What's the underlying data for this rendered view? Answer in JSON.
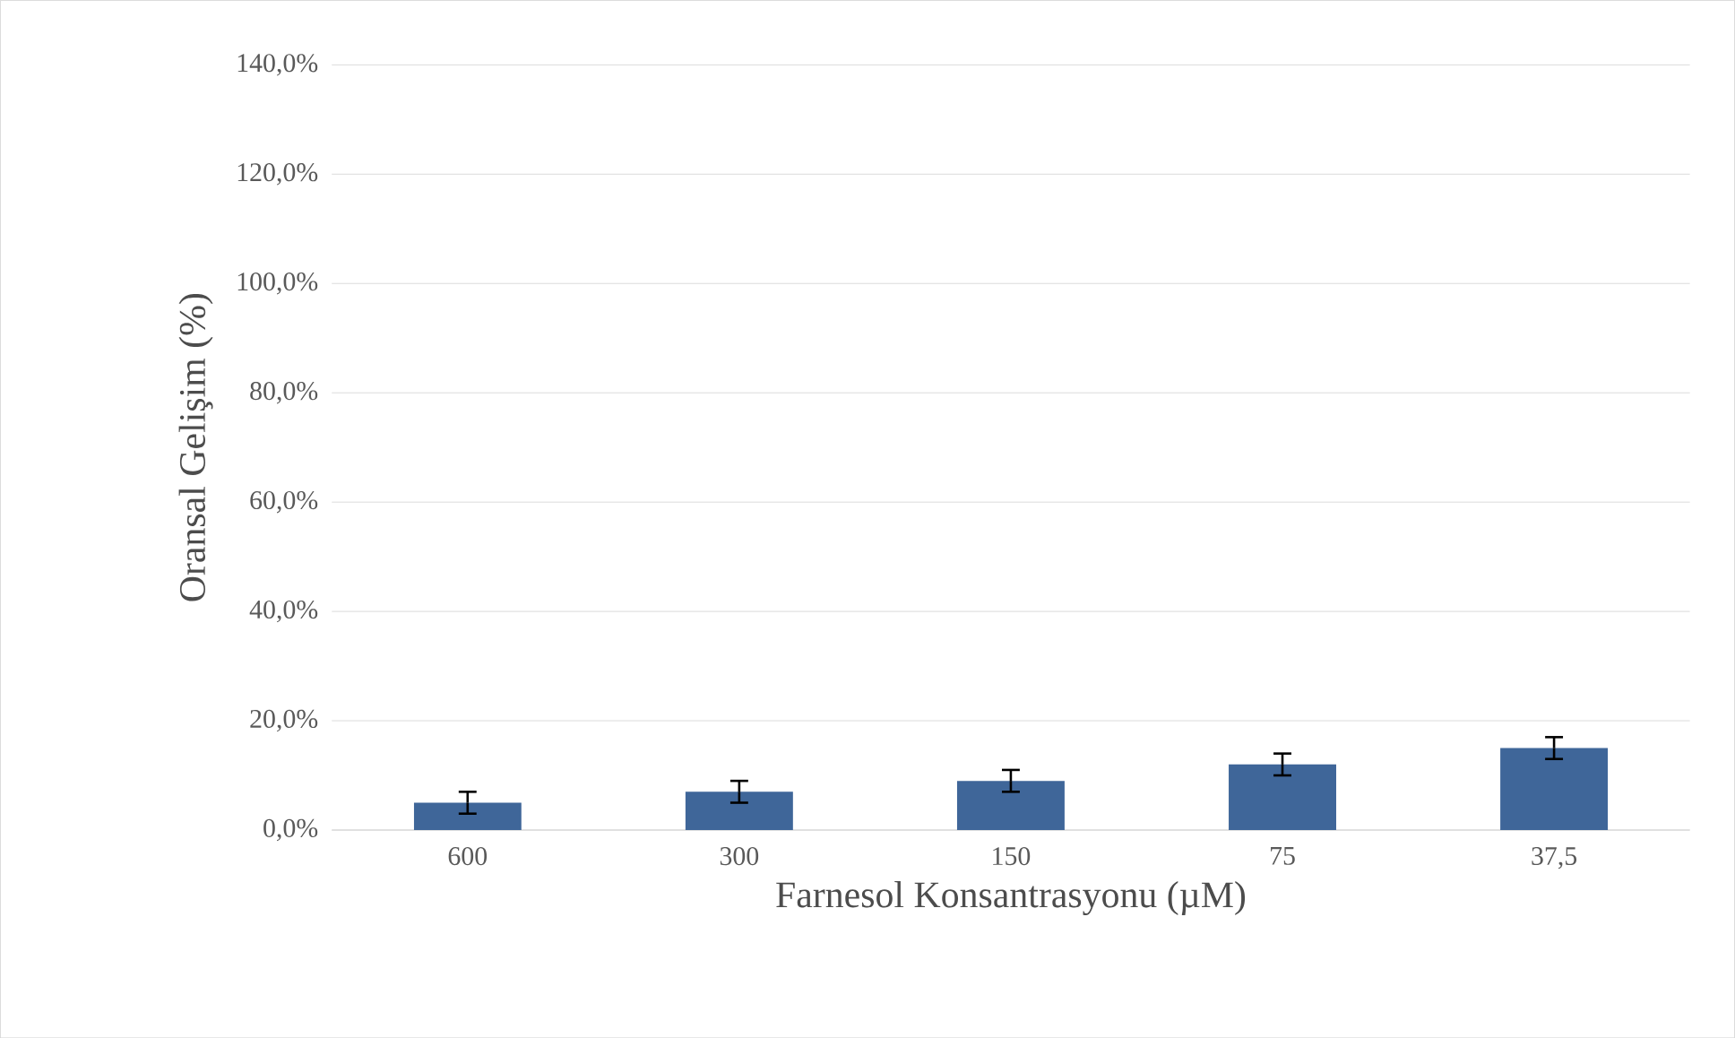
{
  "chart_data": {
    "type": "bar",
    "xlabel": "Farnesol Konsantrasyonu (µM)",
    "ylabel": "Oransal Gelişim (%)",
    "categories": [
      "600",
      "300",
      "150",
      "75",
      "37,5"
    ],
    "values": [
      5,
      7,
      9,
      12,
      15
    ],
    "errors": [
      2,
      2,
      2,
      2,
      2
    ],
    "color": "#3f6699",
    "ylim": [
      0,
      140
    ],
    "yticks": [
      {
        "value": 0,
        "label": "0,0%"
      },
      {
        "value": 20,
        "label": "20,0%"
      },
      {
        "value": 40,
        "label": "40,0%"
      },
      {
        "value": 60,
        "label": "60,0%"
      },
      {
        "value": 80,
        "label": "80,0%"
      },
      {
        "value": 100,
        "label": "100,0%"
      },
      {
        "value": 120,
        "label": "120,0%"
      },
      {
        "value": 140,
        "label": "140,0%"
      }
    ],
    "grid": "y"
  }
}
